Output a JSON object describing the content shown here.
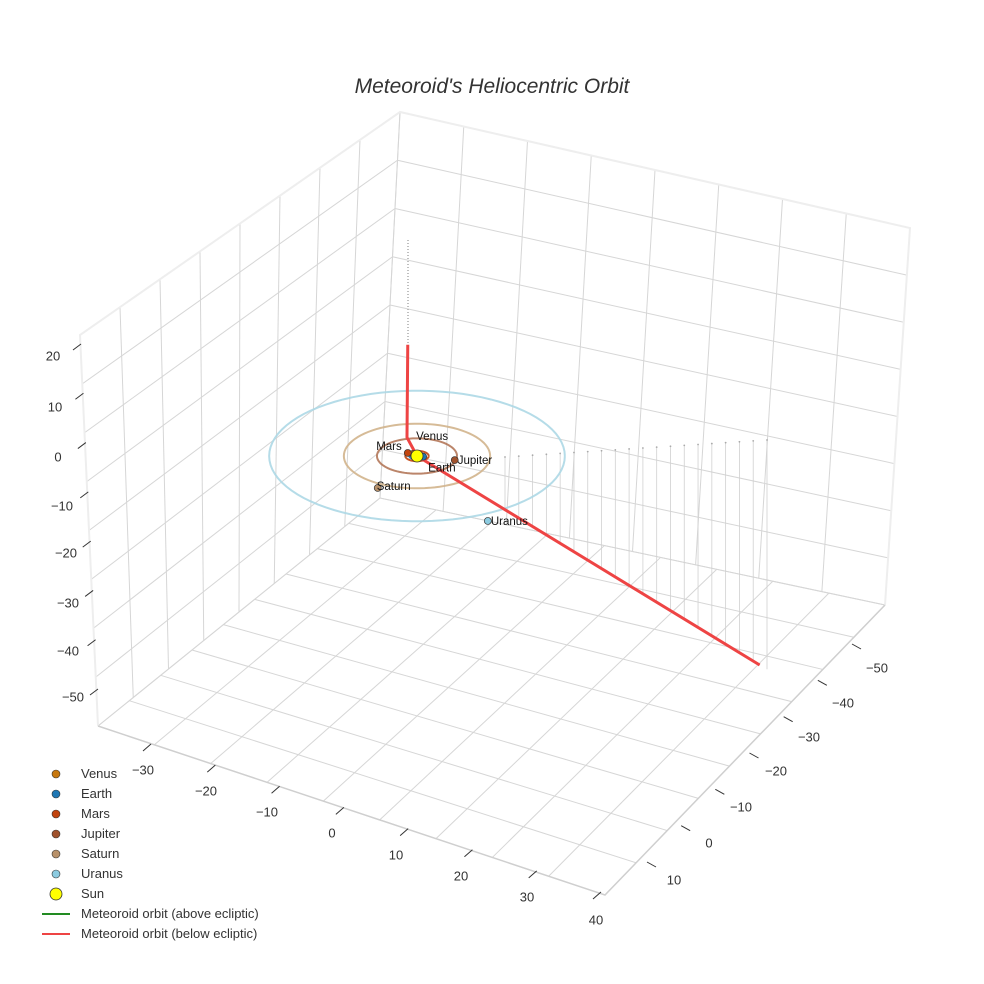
{
  "chart_data": {
    "type": "scatter3d",
    "title": "Meteoroid's Heliocentric Orbit",
    "axes": {
      "x": {
        "ticks": [
          "−30",
          "−20",
          "−10",
          "0",
          "10",
          "20",
          "30",
          "40"
        ]
      },
      "y": {
        "ticks": [
          "−50",
          "−40",
          "−30",
          "−20",
          "−10",
          "0",
          "10"
        ]
      },
      "z": {
        "ticks": [
          "20",
          "10",
          "0",
          "−10",
          "−20",
          "−30",
          "−40",
          "−50"
        ]
      }
    },
    "grid": true,
    "legend_position": "bottom-left",
    "planets": [
      {
        "name": "Venus",
        "color": "#c7780f",
        "pos": [
          -0.5,
          -0.6,
          0
        ],
        "orbit_radius": 0.72,
        "orbit_color": "#c7780f"
      },
      {
        "name": "Earth",
        "color": "#1f77b4",
        "pos": [
          0.8,
          0.2,
          0
        ],
        "orbit_radius": 1.0,
        "orbit_color": "#1f77b4"
      },
      {
        "name": "Mars",
        "color": "#c1440e",
        "pos": [
          -1.2,
          -0.9,
          0
        ],
        "orbit_radius": 1.52,
        "orbit_color": "#c1440e"
      },
      {
        "name": "Jupiter",
        "color": "#a0522d",
        "pos": [
          4.9,
          1.2,
          0
        ],
        "orbit_radius": 5.2,
        "orbit_color": "#b4785a"
      },
      {
        "name": "Saturn",
        "color": "#b8916a",
        "pos": [
          -5.1,
          9.4,
          0
        ],
        "orbit_radius": 9.5,
        "orbit_color": "#d2b48c"
      },
      {
        "name": "Uranus",
        "color": "#8ccbe0",
        "pos": [
          9.2,
          19.1,
          0
        ],
        "orbit_radius": 19.2,
        "orbit_color": "#add8e6"
      }
    ],
    "sun": {
      "name": "Sun",
      "color": "#ffff00",
      "pos": [
        0,
        0,
        0
      ]
    },
    "meteoroid": {
      "above_label": "Meteoroid orbit (above ecliptic)",
      "below_label": "Meteoroid orbit (below ecliptic)",
      "above_color": "#228b22",
      "below_color": "#ee4444",
      "points": [
        [
          -1.2,
          0,
          21
        ],
        [
          -1.3,
          0,
          3.5
        ],
        [
          0,
          0,
          0
        ],
        [
          44.5,
          30.3,
          -20
        ]
      ]
    }
  }
}
